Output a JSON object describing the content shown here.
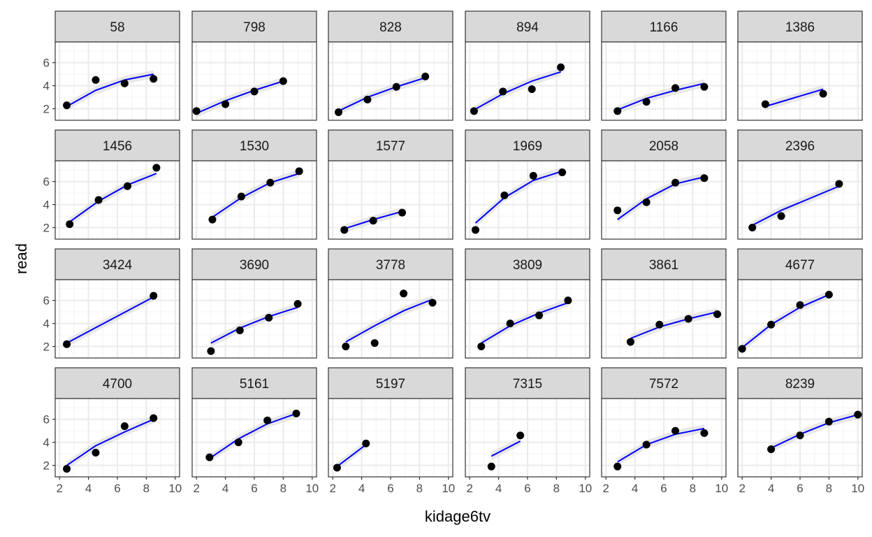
{
  "chart_data": {
    "type": "scatter",
    "facet_layout": {
      "rows": 4,
      "cols": 6
    },
    "xlabel": "kidage6tv",
    "ylabel": "read",
    "xlim": [
      1.7,
      10.3
    ],
    "ylim": [
      1.0,
      7.8
    ],
    "xticks": [
      2,
      4,
      6,
      8,
      10
    ],
    "yticks": [
      2,
      4,
      6
    ],
    "grid": true,
    "legend": "none",
    "colors": {
      "point": "#000000",
      "fit_line": "#0000ff",
      "ribbon": "#d9d9d9",
      "strip_bg": "#d9d9d9",
      "strip_border": "#333333",
      "panel_border": "#333333",
      "grid_major": "#ebebeb",
      "grid_minor": "#f5f5f5"
    },
    "facets": [
      {
        "label": "58",
        "points": [
          [
            2.5,
            2.3
          ],
          [
            4.5,
            4.5
          ],
          [
            6.5,
            4.2
          ],
          [
            8.5,
            4.6
          ]
        ],
        "fit": [
          [
            2.5,
            2.2
          ],
          [
            4.5,
            3.6
          ],
          [
            6.5,
            4.5
          ],
          [
            8.5,
            5.0
          ]
        ]
      },
      {
        "label": "798",
        "points": [
          [
            2.0,
            1.8
          ],
          [
            4.0,
            2.4
          ],
          [
            6.0,
            3.5
          ],
          [
            8.0,
            4.4
          ]
        ],
        "fit": [
          [
            2.0,
            1.6
          ],
          [
            4.0,
            2.7
          ],
          [
            6.0,
            3.6
          ],
          [
            8.0,
            4.4
          ]
        ]
      },
      {
        "label": "828",
        "points": [
          [
            2.4,
            1.7
          ],
          [
            4.4,
            2.8
          ],
          [
            6.4,
            3.9
          ],
          [
            8.4,
            4.8
          ]
        ],
        "fit": [
          [
            2.4,
            1.8
          ],
          [
            4.4,
            3.0
          ],
          [
            6.4,
            3.9
          ],
          [
            8.4,
            4.7
          ]
        ]
      },
      {
        "label": "894",
        "points": [
          [
            2.3,
            1.8
          ],
          [
            4.3,
            3.5
          ],
          [
            6.3,
            3.7
          ],
          [
            8.3,
            5.6
          ]
        ],
        "fit": [
          [
            2.3,
            1.9
          ],
          [
            4.3,
            3.3
          ],
          [
            6.3,
            4.4
          ],
          [
            8.3,
            5.2
          ]
        ]
      },
      {
        "label": "1166",
        "points": [
          [
            2.8,
            1.8
          ],
          [
            4.8,
            2.6
          ],
          [
            6.8,
            3.8
          ],
          [
            8.8,
            3.9
          ]
        ],
        "fit": [
          [
            2.8,
            1.9
          ],
          [
            4.8,
            2.9
          ],
          [
            6.8,
            3.6
          ],
          [
            8.8,
            4.2
          ]
        ]
      },
      {
        "label": "1386",
        "points": [
          [
            3.6,
            2.4
          ],
          [
            7.6,
            3.3
          ]
        ],
        "fit": [
          [
            3.6,
            2.2
          ],
          [
            7.6,
            3.7
          ]
        ]
      },
      {
        "label": "1456",
        "points": [
          [
            2.7,
            2.3
          ],
          [
            4.7,
            4.4
          ],
          [
            6.7,
            5.6
          ],
          [
            8.7,
            7.2
          ]
        ],
        "fit": [
          [
            2.7,
            2.5
          ],
          [
            4.7,
            4.3
          ],
          [
            6.7,
            5.7
          ],
          [
            8.7,
            6.7
          ]
        ]
      },
      {
        "label": "1530",
        "points": [
          [
            3.1,
            2.7
          ],
          [
            5.1,
            4.7
          ],
          [
            7.1,
            5.9
          ],
          [
            9.1,
            6.9
          ]
        ],
        "fit": [
          [
            3.1,
            2.9
          ],
          [
            5.1,
            4.6
          ],
          [
            7.1,
            5.9
          ],
          [
            9.1,
            6.7
          ]
        ]
      },
      {
        "label": "1577",
        "points": [
          [
            2.8,
            1.8
          ],
          [
            4.8,
            2.6
          ],
          [
            6.8,
            3.3
          ]
        ],
        "fit": [
          [
            2.8,
            1.9
          ],
          [
            4.8,
            2.7
          ],
          [
            6.8,
            3.4
          ]
        ]
      },
      {
        "label": "1969",
        "points": [
          [
            2.4,
            1.8
          ],
          [
            4.4,
            4.8
          ],
          [
            6.4,
            6.5
          ],
          [
            8.4,
            6.8
          ]
        ],
        "fit": [
          [
            2.4,
            2.4
          ],
          [
            4.4,
            4.6
          ],
          [
            6.4,
            6.1
          ],
          [
            8.4,
            6.9
          ]
        ]
      },
      {
        "label": "2058",
        "points": [
          [
            2.8,
            3.5
          ],
          [
            4.8,
            4.2
          ],
          [
            6.8,
            5.9
          ],
          [
            8.8,
            6.3
          ]
        ],
        "fit": [
          [
            2.8,
            2.7
          ],
          [
            4.8,
            4.5
          ],
          [
            6.8,
            5.8
          ],
          [
            8.8,
            6.4
          ]
        ]
      },
      {
        "label": "2396",
        "points": [
          [
            2.7,
            2.0
          ],
          [
            4.7,
            3.0
          ],
          [
            8.7,
            5.8
          ]
        ],
        "fit": [
          [
            2.7,
            2.2
          ],
          [
            4.7,
            3.5
          ],
          [
            8.7,
            5.6
          ]
        ]
      },
      {
        "label": "3424",
        "points": [
          [
            2.5,
            2.2
          ],
          [
            8.5,
            6.4
          ]
        ],
        "fit": [
          [
            2.5,
            2.3
          ],
          [
            8.5,
            6.3
          ]
        ]
      },
      {
        "label": "3690",
        "points": [
          [
            3.0,
            1.6
          ],
          [
            5.0,
            3.4
          ],
          [
            7.0,
            4.5
          ],
          [
            9.0,
            5.7
          ]
        ],
        "fit": [
          [
            3.0,
            2.3
          ],
          [
            5.0,
            3.6
          ],
          [
            7.0,
            4.6
          ],
          [
            9.0,
            5.4
          ]
        ]
      },
      {
        "label": "3778",
        "points": [
          [
            2.9,
            2.0
          ],
          [
            4.9,
            2.3
          ],
          [
            6.9,
            6.6
          ],
          [
            8.9,
            5.8
          ]
        ],
        "fit": [
          [
            2.9,
            2.4
          ],
          [
            4.9,
            3.8
          ],
          [
            6.9,
            5.1
          ],
          [
            8.9,
            6.1
          ]
        ]
      },
      {
        "label": "3809",
        "points": [
          [
            2.8,
            2.0
          ],
          [
            4.8,
            4.0
          ],
          [
            6.8,
            4.7
          ],
          [
            8.8,
            6.0
          ]
        ],
        "fit": [
          [
            2.8,
            2.3
          ],
          [
            4.8,
            3.8
          ],
          [
            6.8,
            4.9
          ],
          [
            8.8,
            5.8
          ]
        ]
      },
      {
        "label": "3861",
        "points": [
          [
            3.7,
            2.4
          ],
          [
            5.7,
            3.9
          ],
          [
            7.7,
            4.4
          ],
          [
            9.7,
            4.8
          ]
        ],
        "fit": [
          [
            3.7,
            2.7
          ],
          [
            5.7,
            3.7
          ],
          [
            7.7,
            4.4
          ],
          [
            9.7,
            5.0
          ]
        ]
      },
      {
        "label": "4677",
        "points": [
          [
            2.0,
            1.8
          ],
          [
            4.0,
            3.9
          ],
          [
            6.0,
            5.6
          ],
          [
            8.0,
            6.5
          ]
        ],
        "fit": [
          [
            2.0,
            1.9
          ],
          [
            4.0,
            3.9
          ],
          [
            6.0,
            5.4
          ],
          [
            8.0,
            6.5
          ]
        ]
      },
      {
        "label": "4700",
        "points": [
          [
            2.5,
            1.7
          ],
          [
            4.5,
            3.1
          ],
          [
            6.5,
            5.4
          ],
          [
            8.5,
            6.1
          ]
        ],
        "fit": [
          [
            2.5,
            2.0
          ],
          [
            4.5,
            3.7
          ],
          [
            6.5,
            4.9
          ],
          [
            8.5,
            6.0
          ]
        ]
      },
      {
        "label": "5161",
        "points": [
          [
            2.9,
            2.7
          ],
          [
            4.9,
            4.0
          ],
          [
            6.9,
            5.9
          ],
          [
            8.9,
            6.5
          ]
        ],
        "fit": [
          [
            2.9,
            2.6
          ],
          [
            4.9,
            4.3
          ],
          [
            6.9,
            5.6
          ],
          [
            8.9,
            6.5
          ]
        ]
      },
      {
        "label": "5197",
        "points": [
          [
            2.3,
            1.8
          ],
          [
            4.3,
            3.9
          ]
        ],
        "fit": [
          [
            2.3,
            1.9
          ],
          [
            4.3,
            3.8
          ]
        ]
      },
      {
        "label": "7315",
        "points": [
          [
            3.5,
            1.9
          ],
          [
            5.5,
            4.6
          ]
        ],
        "fit": [
          [
            3.5,
            2.8
          ],
          [
            5.5,
            4.1
          ]
        ]
      },
      {
        "label": "7572",
        "points": [
          [
            2.8,
            1.9
          ],
          [
            4.8,
            3.8
          ],
          [
            6.8,
            5.0
          ],
          [
            8.8,
            4.8
          ]
        ],
        "fit": [
          [
            2.8,
            2.3
          ],
          [
            4.8,
            3.8
          ],
          [
            6.8,
            4.7
          ],
          [
            8.8,
            5.2
          ]
        ]
      },
      {
        "label": "8239",
        "points": [
          [
            4.0,
            3.4
          ],
          [
            6.0,
            4.6
          ],
          [
            8.0,
            5.8
          ],
          [
            10.0,
            6.4
          ]
        ],
        "fit": [
          [
            4.0,
            3.5
          ],
          [
            6.0,
            4.7
          ],
          [
            8.0,
            5.7
          ],
          [
            10.0,
            6.4
          ]
        ]
      }
    ]
  }
}
